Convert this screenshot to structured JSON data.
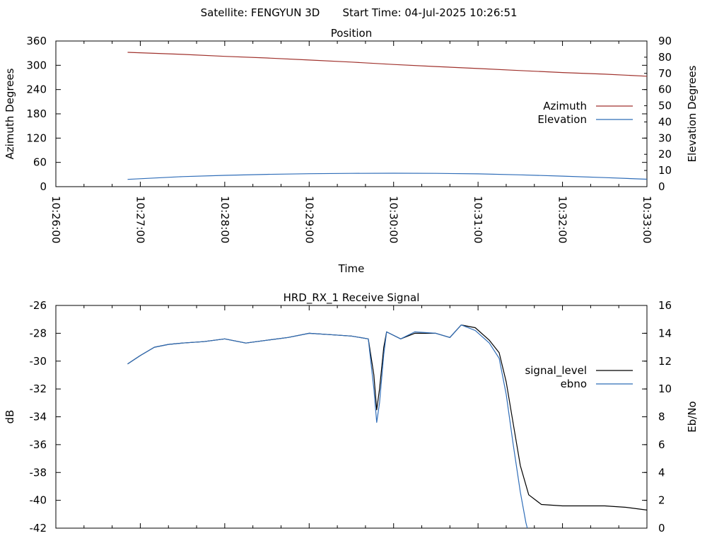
{
  "header": {
    "satellite_label": "Satellite: FENGYUN 3D",
    "start_time_label": "Start Time: 04-Jul-2025 10:26:51"
  },
  "chart_data": [
    {
      "type": "line",
      "title": "Position",
      "xlabel": "Time",
      "ylabel": "Azimuth Degrees",
      "y2label": "Elevation Degrees",
      "x_ticks": [
        "10:26:00",
        "10:27:00",
        "10:28:00",
        "10:29:00",
        "10:30:00",
        "10:31:00",
        "10:32:00",
        "10:33:00"
      ],
      "xlim": [
        "10:26:00",
        "10:33:00"
      ],
      "ylim": [
        0,
        360
      ],
      "y_ticks": [
        0,
        60,
        120,
        180,
        240,
        300,
        360
      ],
      "y2lim": [
        0,
        90
      ],
      "y2_ticks": [
        0,
        10,
        20,
        30,
        40,
        50,
        60,
        70,
        80,
        90
      ],
      "legend_position": "right",
      "grid": false,
      "series": [
        {
          "name": "Azimuth",
          "axis": "y",
          "color": "#a0322d",
          "points": [
            [
              "10:26:51",
              332
            ],
            [
              "10:27:30",
              327
            ],
            [
              "10:28:00",
              322
            ],
            [
              "10:28:30",
              318
            ],
            [
              "10:29:00",
              313
            ],
            [
              "10:29:30",
              308
            ],
            [
              "10:30:00",
              302
            ],
            [
              "10:30:30",
              297
            ],
            [
              "10:31:00",
              292
            ],
            [
              "10:31:30",
              287
            ],
            [
              "10:32:00",
              282
            ],
            [
              "10:32:30",
              278
            ],
            [
              "10:33:00",
              273
            ]
          ]
        },
        {
          "name": "Elevation",
          "axis": "y2",
          "color": "#2f6db8",
          "points": [
            [
              "10:26:51",
              4.5
            ],
            [
              "10:27:30",
              6.2
            ],
            [
              "10:28:00",
              7.0
            ],
            [
              "10:28:30",
              7.6
            ],
            [
              "10:29:00",
              8.0
            ],
            [
              "10:29:30",
              8.2
            ],
            [
              "10:30:00",
              8.3
            ],
            [
              "10:30:30",
              8.2
            ],
            [
              "10:31:00",
              7.9
            ],
            [
              "10:31:30",
              7.3
            ],
            [
              "10:32:00",
              6.5
            ],
            [
              "10:32:30",
              5.6
            ],
            [
              "10:33:00",
              4.6
            ]
          ]
        }
      ]
    },
    {
      "type": "line",
      "title": "HRD_RX_1 Receive Signal",
      "xlabel": "",
      "ylabel": "dB",
      "y2label": "Eb/No",
      "xlim": [
        "10:26:00",
        "10:33:00"
      ],
      "ylim": [
        -42,
        -26
      ],
      "y_ticks": [
        -26,
        -28,
        -30,
        -32,
        -34,
        -36,
        -38,
        -40,
        -42
      ],
      "y2lim": [
        0,
        16
      ],
      "y2_ticks": [
        0,
        2,
        4,
        6,
        8,
        10,
        12,
        14,
        16
      ],
      "legend_position": "right",
      "grid": false,
      "series": [
        {
          "name": "signal_level",
          "axis": "y",
          "color": "#000000",
          "points": [
            [
              "10:26:51",
              -30.2
            ],
            [
              "10:27:00",
              -29.6
            ],
            [
              "10:27:10",
              -29.0
            ],
            [
              "10:27:20",
              -28.8
            ],
            [
              "10:27:30",
              -28.7
            ],
            [
              "10:27:45",
              -28.6
            ],
            [
              "10:28:00",
              -28.4
            ],
            [
              "10:28:15",
              -28.7
            ],
            [
              "10:28:30",
              -28.5
            ],
            [
              "10:28:45",
              -28.3
            ],
            [
              "10:29:00",
              -28.0
            ],
            [
              "10:29:15",
              -28.1
            ],
            [
              "10:29:30",
              -28.2
            ],
            [
              "10:29:42",
              -28.4
            ],
            [
              "10:29:46",
              -31.0
            ],
            [
              "10:29:48",
              -33.5
            ],
            [
              "10:29:50",
              -32.0
            ],
            [
              "10:29:53",
              -29.0
            ],
            [
              "10:29:55",
              -27.9
            ],
            [
              "10:30:05",
              -28.4
            ],
            [
              "10:30:15",
              -28.0
            ],
            [
              "10:30:30",
              -28.0
            ],
            [
              "10:30:40",
              -28.3
            ],
            [
              "10:30:48",
              -27.4
            ],
            [
              "10:30:58",
              -27.6
            ],
            [
              "10:31:08",
              -28.5
            ],
            [
              "10:31:15",
              -29.4
            ],
            [
              "10:31:20",
              -31.5
            ],
            [
              "10:31:25",
              -34.5
            ],
            [
              "10:31:30",
              -37.5
            ],
            [
              "10:31:36",
              -39.6
            ],
            [
              "10:31:45",
              -40.3
            ],
            [
              "10:32:00",
              -40.4
            ],
            [
              "10:32:15",
              -40.4
            ],
            [
              "10:32:30",
              -40.4
            ],
            [
              "10:32:45",
              -40.5
            ],
            [
              "10:33:00",
              -40.7
            ]
          ]
        },
        {
          "name": "ebno",
          "axis": "y2",
          "color": "#2f6db8",
          "points": [
            [
              "10:26:51",
              11.8
            ],
            [
              "10:27:00",
              12.4
            ],
            [
              "10:27:10",
              13.0
            ],
            [
              "10:27:20",
              13.2
            ],
            [
              "10:27:30",
              13.3
            ],
            [
              "10:27:45",
              13.4
            ],
            [
              "10:28:00",
              13.6
            ],
            [
              "10:28:15",
              13.3
            ],
            [
              "10:28:30",
              13.5
            ],
            [
              "10:28:45",
              13.7
            ],
            [
              "10:29:00",
              14.0
            ],
            [
              "10:29:15",
              13.9
            ],
            [
              "10:29:30",
              13.8
            ],
            [
              "10:29:42",
              13.6
            ],
            [
              "10:29:46",
              10.0
            ],
            [
              "10:29:48",
              7.6
            ],
            [
              "10:29:50",
              9.0
            ],
            [
              "10:29:53",
              12.5
            ],
            [
              "10:29:55",
              14.1
            ],
            [
              "10:30:05",
              13.6
            ],
            [
              "10:30:15",
              14.1
            ],
            [
              "10:30:30",
              14.0
            ],
            [
              "10:30:40",
              13.7
            ],
            [
              "10:30:48",
              14.6
            ],
            [
              "10:30:58",
              14.2
            ],
            [
              "10:31:08",
              13.3
            ],
            [
              "10:31:15",
              12.2
            ],
            [
              "10:31:20",
              9.6
            ],
            [
              "10:31:25",
              6.0
            ],
            [
              "10:31:30",
              2.6
            ],
            [
              "10:31:34",
              0.4
            ],
            [
              "10:31:35",
              0.0
            ]
          ]
        }
      ]
    }
  ]
}
